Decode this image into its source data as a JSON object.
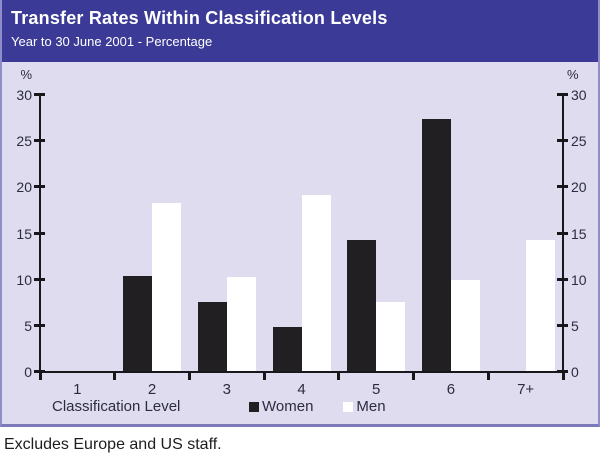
{
  "colors": {
    "header_bg": "#3b3a96",
    "panel_bg": "#dedcee",
    "panel_border": "#8e8cc9",
    "panel_border_dark": "#7c79bb",
    "axis": "#17171c",
    "women_bar": "#211f22",
    "men_bar": "#ffffff",
    "text_dark": "#2c2c40"
  },
  "chart_data": {
    "type": "bar",
    "title": "Transfer Rates Within Classification Levels",
    "subtitle": "Year to 30 June 2001 - Percentage",
    "categories": [
      "1",
      "2",
      "3",
      "4",
      "5",
      "6",
      "7+"
    ],
    "series": [
      {
        "name": "Women",
        "color": "#211f22",
        "values": [
          0,
          10.4,
          7.6,
          4.9,
          14.3,
          27.4,
          0
        ]
      },
      {
        "name": "Men",
        "color": "#ffffff",
        "values": [
          0,
          18.3,
          10.3,
          19.2,
          7.6,
          10.0,
          14.3
        ]
      }
    ],
    "xlabel": "Classification Level",
    "ylabel": "",
    "y_axis": {
      "unit_label": "%",
      "ticks": [
        0,
        5,
        10,
        15,
        20,
        25,
        30
      ],
      "min": 0,
      "max": 30,
      "sides": "both"
    },
    "legend_position": "bottom",
    "grid": "off",
    "footnote": "Excludes Europe and US staff."
  }
}
